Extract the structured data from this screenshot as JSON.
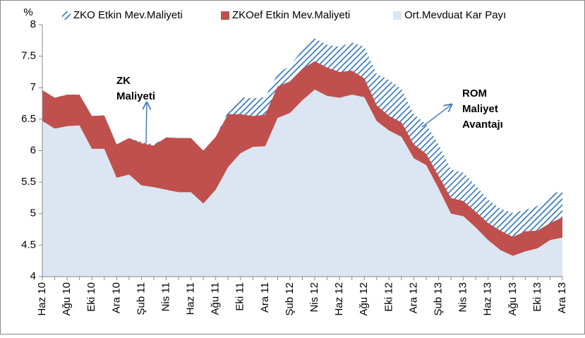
{
  "chart_data": {
    "type": "area",
    "y_label": "%",
    "categories": [
      "Haz 10",
      null,
      "Ağu 10",
      null,
      "Eki 10",
      null,
      "Ara 10",
      null,
      "Şub 11",
      null,
      "Nis 11",
      null,
      "Haz 11",
      null,
      "Ağu 11",
      null,
      "Eki 11",
      null,
      "Ara 11",
      null,
      "Şub 12",
      null,
      "Nis 12",
      null,
      "Haz 12",
      null,
      "Ağu 12",
      null,
      "Eki 12",
      null,
      "Ara 12",
      null,
      "Şub 13",
      null,
      "Nis 13",
      null,
      "Haz 13",
      null,
      "Ağu 13",
      null,
      "Eki 13",
      null,
      "Ara 13"
    ],
    "series": [
      {
        "name": "ZKO Etkin Mev.Maliyeti",
        "color": "#2e75b6",
        "hatched": true,
        "values": [
          6.96,
          6.84,
          6.89,
          6.89,
          6.55,
          6.56,
          6.1,
          6.2,
          6.14,
          6.1,
          6.21,
          6.2,
          6.2,
          6.0,
          6.22,
          6.62,
          6.85,
          6.83,
          6.85,
          7.22,
          7.35,
          7.6,
          7.78,
          7.68,
          7.65,
          7.72,
          7.65,
          7.22,
          7.12,
          6.98,
          6.58,
          6.42,
          6.1,
          5.7,
          5.65,
          5.45,
          5.22,
          5.08,
          5.01,
          5.06,
          5.12,
          5.3,
          5.37
        ]
      },
      {
        "name": "ZKOef Etkin Mev.Maliyeti",
        "color": "#c0504d",
        "hatched": false,
        "values": [
          6.96,
          6.84,
          6.89,
          6.89,
          6.55,
          6.56,
          6.1,
          6.2,
          6.12,
          6.08,
          6.21,
          6.2,
          6.2,
          6.0,
          6.22,
          6.58,
          6.58,
          6.55,
          6.57,
          7.02,
          7.1,
          7.3,
          7.42,
          7.32,
          7.25,
          7.27,
          7.15,
          6.72,
          6.55,
          6.45,
          6.1,
          5.95,
          5.6,
          5.25,
          5.2,
          5.03,
          4.85,
          4.73,
          4.63,
          4.72,
          4.73,
          4.85,
          4.94
        ]
      },
      {
        "name": "Ort.Mevduat Kar Payı",
        "color": "#dce6f2",
        "hatched": false,
        "values": [
          6.47,
          6.35,
          6.39,
          6.4,
          6.03,
          6.03,
          5.57,
          5.62,
          5.45,
          5.42,
          5.38,
          5.34,
          5.34,
          5.16,
          5.38,
          5.74,
          5.96,
          6.06,
          6.07,
          6.52,
          6.6,
          6.8,
          6.97,
          6.87,
          6.84,
          6.89,
          6.85,
          6.47,
          6.32,
          6.22,
          5.88,
          5.77,
          5.4,
          5.0,
          4.96,
          4.78,
          4.58,
          4.42,
          4.33,
          4.4,
          4.45,
          4.58,
          4.62
        ]
      }
    ],
    "ylim": [
      4,
      8
    ],
    "yticks": [
      4,
      4.5,
      5,
      5.5,
      6,
      6.5,
      7,
      7.5,
      8
    ],
    "legend": "top",
    "annotations": [
      {
        "lines": [
          "ZK",
          "Maliyeti"
        ]
      },
      {
        "lines": [
          "ROM",
          "Maliyet",
          "Avantajı"
        ]
      }
    ]
  }
}
